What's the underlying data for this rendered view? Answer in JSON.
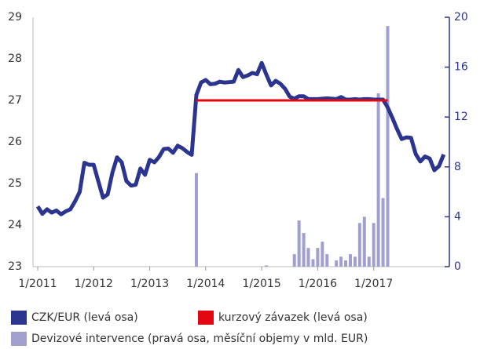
{
  "chart_data": {
    "type": "line",
    "categories": [
      "1/2011",
      "2/2011",
      "3/2011",
      "4/2011",
      "5/2011",
      "6/2011",
      "7/2011",
      "8/2011",
      "9/2011",
      "10/2011",
      "11/2011",
      "12/2011",
      "1/2012",
      "2/2012",
      "3/2012",
      "4/2012",
      "5/2012",
      "6/2012",
      "7/2012",
      "8/2012",
      "9/2012",
      "10/2012",
      "11/2012",
      "12/2012",
      "1/2013",
      "2/2013",
      "3/2013",
      "4/2013",
      "5/2013",
      "6/2013",
      "7/2013",
      "8/2013",
      "9/2013",
      "10/2013",
      "11/2013",
      "12/2013",
      "1/2014",
      "2/2014",
      "3/2014",
      "4/2014",
      "5/2014",
      "6/2014",
      "7/2014",
      "8/2014",
      "9/2014",
      "10/2014",
      "11/2014",
      "12/2014",
      "1/2015",
      "2/2015",
      "3/2015",
      "4/2015",
      "5/2015",
      "6/2015",
      "7/2015",
      "8/2015",
      "9/2015",
      "10/2015",
      "11/2015",
      "12/2015",
      "1/2016",
      "2/2016",
      "3/2016",
      "4/2016",
      "5/2016",
      "6/2016",
      "7/2016",
      "8/2016",
      "9/2016",
      "10/2016",
      "11/2016",
      "12/2016",
      "1/2017",
      "2/2017",
      "3/2017",
      "4/2017",
      "5/2017",
      "6/2017",
      "7/2017",
      "8/2017",
      "9/2017",
      "10/2017",
      "11/2017",
      "12/2017",
      "1/2018",
      "2/2018",
      "3/2018",
      "4/2018"
    ],
    "xticks": [
      "1/2011",
      "1/2012",
      "1/2013",
      "1/2014",
      "1/2015",
      "1/2016",
      "1/2017"
    ],
    "ylim": [
      23,
      29
    ],
    "yticks": [
      23,
      24,
      25,
      26,
      27,
      28,
      29
    ],
    "y2lim": [
      0,
      20
    ],
    "y2ticks": [
      0,
      4,
      8,
      12,
      16,
      20
    ],
    "series": [
      {
        "name": "CZK/EUR (levá osa)",
        "color": "#2b3590",
        "values": [
          24.45,
          24.27,
          24.38,
          24.3,
          24.35,
          24.26,
          24.33,
          24.38,
          24.57,
          24.8,
          25.5,
          25.45,
          25.45,
          25.05,
          24.66,
          24.74,
          25.26,
          25.63,
          25.51,
          25.06,
          24.95,
          24.97,
          25.36,
          25.21,
          25.57,
          25.51,
          25.64,
          25.83,
          25.84,
          25.74,
          25.91,
          25.85,
          25.76,
          25.69,
          27.13,
          27.43,
          27.49,
          27.39,
          27.4,
          27.45,
          27.43,
          27.44,
          27.45,
          27.73,
          27.56,
          27.6,
          27.66,
          27.63,
          27.9,
          27.62,
          27.36,
          27.47,
          27.4,
          27.28,
          27.09,
          27.04,
          27.1,
          27.1,
          27.03,
          27.03,
          27.03,
          27.04,
          27.05,
          27.04,
          27.03,
          27.08,
          27.02,
          27.02,
          27.03,
          27.02,
          27.03,
          27.03,
          27.02,
          27.02,
          27.02,
          26.83,
          26.58,
          26.31,
          26.07,
          26.11,
          26.1,
          25.71,
          25.53,
          25.65,
          25.6,
          25.32,
          25.42,
          25.7
        ]
      },
      {
        "name": "kurzový závazek (levá osa)",
        "color": "#e30613",
        "values": [
          null,
          null,
          null,
          null,
          null,
          null,
          null,
          null,
          null,
          null,
          null,
          null,
          null,
          null,
          null,
          null,
          null,
          null,
          null,
          null,
          null,
          null,
          null,
          null,
          null,
          null,
          null,
          null,
          null,
          null,
          null,
          null,
          null,
          null,
          27,
          27,
          27,
          27,
          27,
          27,
          27,
          27,
          27,
          27,
          27,
          27,
          27,
          27,
          27,
          27,
          27,
          27,
          27,
          27,
          27,
          27,
          27,
          27,
          27,
          27,
          27,
          27,
          27,
          27,
          27,
          27,
          27,
          27,
          27,
          27,
          27,
          27,
          27,
          27,
          27,
          27,
          null,
          null,
          null,
          null,
          null,
          null,
          null,
          null,
          null,
          null,
          null,
          null
        ]
      },
      {
        "name": "Devizové intervence (pravá osa, měsíční objemy v mld. EUR)",
        "color": "#a19fcf",
        "type": "bar",
        "axis": "y2",
        "values": [
          0,
          0,
          0,
          0,
          0,
          0,
          0,
          0,
          0,
          0,
          0,
          0,
          0,
          0,
          0,
          0,
          0,
          0,
          0,
          0,
          0,
          0,
          0,
          0,
          0,
          0,
          0,
          0,
          0,
          0,
          0,
          0,
          0,
          0,
          7.5,
          0,
          0,
          0,
          0,
          0,
          0,
          0,
          0,
          0,
          0,
          0,
          0,
          0,
          0,
          0.1,
          0,
          0,
          0,
          0,
          0,
          1.0,
          3.7,
          2.7,
          1.5,
          0.6,
          1.5,
          2.0,
          1.0,
          0,
          0.5,
          0.8,
          0.5,
          1.0,
          0.8,
          3.5,
          4.0,
          0.8,
          3.5,
          13.9,
          5.5,
          19.3,
          0,
          0,
          0,
          0,
          0,
          0,
          0,
          0,
          0,
          0,
          0,
          0
        ]
      }
    ]
  }
}
